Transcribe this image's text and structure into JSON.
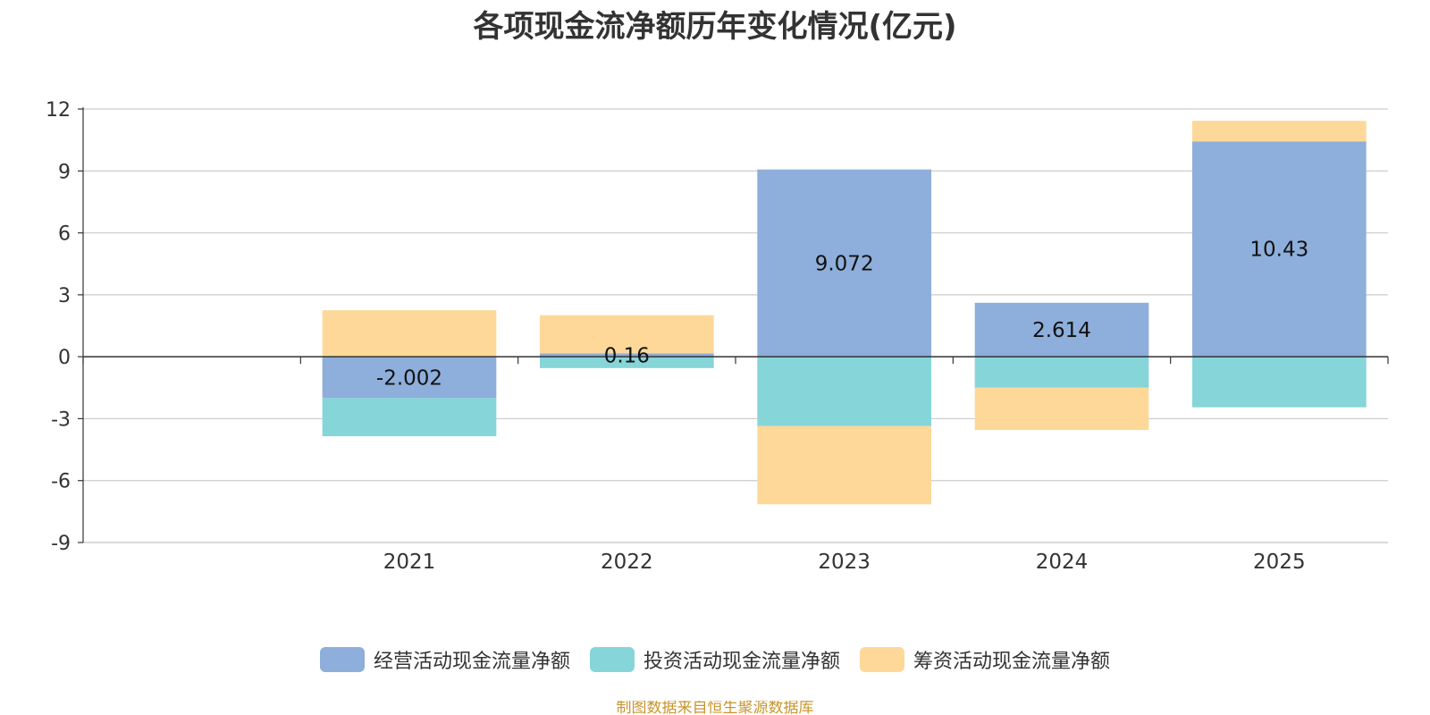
{
  "chart_data": {
    "type": "bar",
    "stacked": true,
    "title": "各项现金流净额历年变化情况(亿元)",
    "categories": [
      "",
      "2021",
      "2022",
      "2023",
      "2024",
      "2025"
    ],
    "ylim": [
      -9,
      12
    ],
    "yticks": [
      12,
      9,
      6,
      3,
      0,
      -3,
      -6,
      -9
    ],
    "grid": true,
    "legend_position": "bottom",
    "series": [
      {
        "name": "经营活动现金流量净额",
        "color": "#8eaedb",
        "values": [
          null,
          -2.002,
          0.16,
          9.072,
          2.614,
          10.43
        ],
        "labels": [
          "",
          "-2.002",
          "0.16",
          "9.072",
          "2.614",
          "10.43"
        ]
      },
      {
        "name": "投资活动现金流量净额",
        "color": "#86d5d8",
        "values": [
          null,
          -1.85,
          -0.55,
          -3.35,
          -1.5,
          -2.45
        ]
      },
      {
        "name": "筹资活动现金流量净额",
        "color": "#fed899",
        "values": [
          null,
          2.25,
          1.85,
          -3.8,
          -2.05,
          1.0
        ]
      }
    ]
  },
  "footer": {
    "source": "制图数据来自恒生聚源数据库"
  }
}
